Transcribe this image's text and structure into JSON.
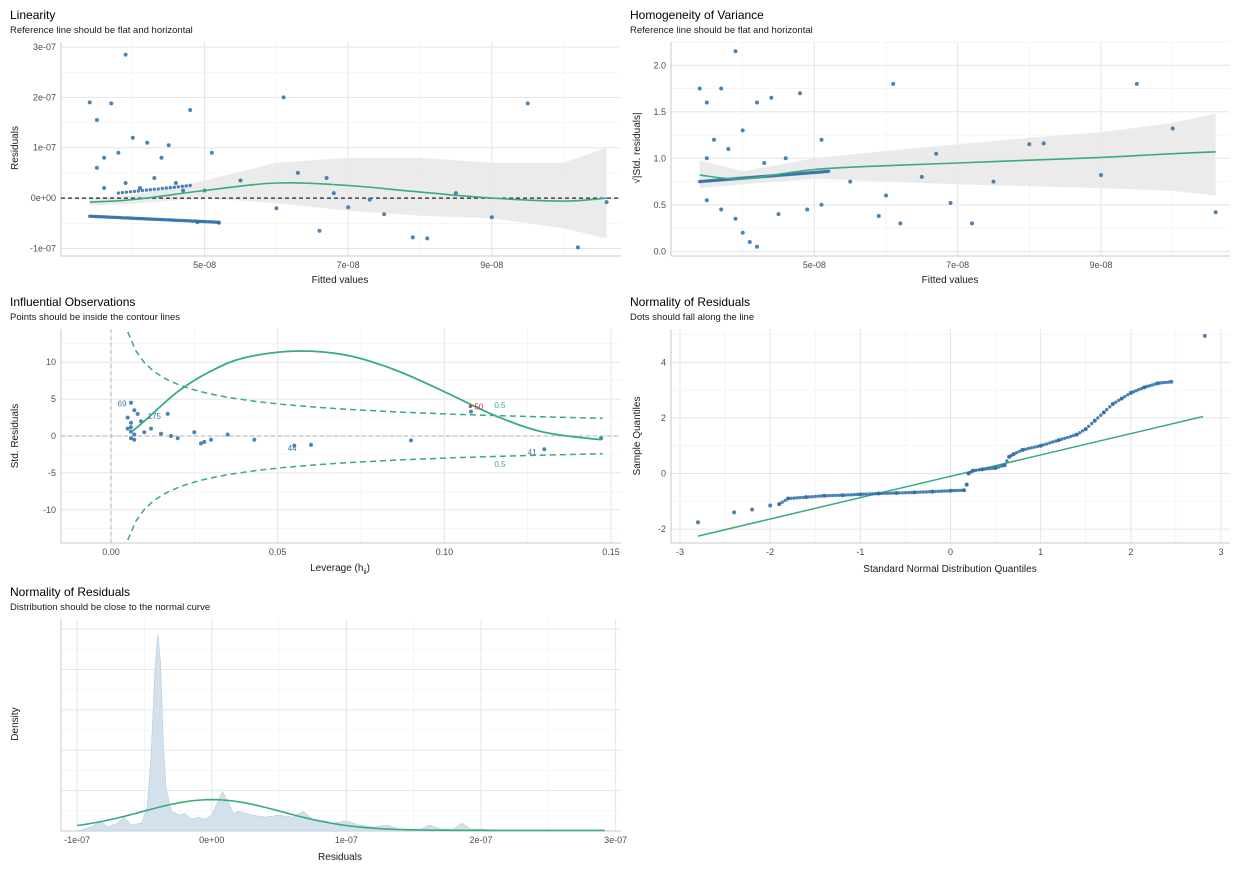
{
  "colors": {
    "points": "#2f6fa6",
    "fit_line": "#3aaa80",
    "band": "#e8e8e8",
    "reference": "#222222",
    "density_fill": "#d2e1ec",
    "highlight": "#cc3333"
  },
  "chart_data": [
    {
      "id": "linearity",
      "type": "scatter",
      "title": "Linearity",
      "subtitle": "Reference line should be flat and horizontal",
      "xlabel": "Fitted values",
      "ylabel": "Residuals",
      "xlim": [
        3e-08,
        1.08e-07
      ],
      "ylim": [
        -1.15e-07,
        3.1e-07
      ],
      "xticks": [
        {
          "v": 5e-08,
          "label": "5e-08"
        },
        {
          "v": 7e-08,
          "label": "7e-08"
        },
        {
          "v": 9e-08,
          "label": "9e-08"
        }
      ],
      "yticks": [
        {
          "v": -1e-07,
          "label": "-1e-07"
        },
        {
          "v": 0,
          "label": "0e+00"
        },
        {
          "v": 1e-07,
          "label": "1e-07"
        },
        {
          "v": 2e-07,
          "label": "2e-07"
        },
        {
          "v": 3e-07,
          "label": "3e-07"
        }
      ],
      "reference_line": {
        "y": 0,
        "style": "dashed"
      },
      "smooth": {
        "x": [
          3.4e-08,
          4e-08,
          5e-08,
          6e-08,
          7e-08,
          8e-08,
          9e-08,
          1e-07,
          1.06e-07
        ],
        "y": [
          -8e-09,
          -3e-09,
          1.5e-08,
          3e-08,
          2.5e-08,
          1.2e-08,
          0,
          -6e-09,
          0
        ]
      },
      "band": {
        "x": [
          3.4e-08,
          4e-08,
          5e-08,
          6e-08,
          7e-08,
          8e-08,
          9e-08,
          1e-07,
          1.06e-07
        ],
        "lo": [
          -1.5e-08,
          -1.1e-08,
          0,
          -1e-08,
          -2.5e-08,
          -3.5e-08,
          -4e-08,
          -6e-08,
          -8e-08
        ],
        "hi": [
          1e-09,
          6e-09,
          3.5e-08,
          7e-08,
          8e-08,
          8e-08,
          7e-08,
          7e-08,
          1e-07
        ]
      },
      "points": [
        [
          3.4e-08,
          1.9e-07
        ],
        [
          3.5e-08,
          1.55e-07
        ],
        [
          3.7e-08,
          1.88e-07
        ],
        [
          3.9e-08,
          2.85e-07
        ],
        [
          3.5e-08,
          6e-08
        ],
        [
          3.6e-08,
          8e-08
        ],
        [
          3.8e-08,
          9e-08
        ],
        [
          4e-08,
          1.2e-07
        ],
        [
          4.2e-08,
          1.1e-07
        ],
        [
          4.4e-08,
          8e-08
        ],
        [
          4.5e-08,
          1.05e-07
        ],
        [
          4.8e-08,
          1.75e-07
        ],
        [
          5.1e-08,
          9e-08
        ],
        [
          4.1e-08,
          2e-08
        ],
        [
          4.3e-08,
          4e-08
        ],
        [
          3.6e-08,
          2e-08
        ],
        [
          3.9e-08,
          3e-08
        ],
        [
          4.6e-08,
          3e-08
        ],
        [
          5e-08,
          1.5e-08
        ],
        [
          5.5e-08,
          3.5e-08
        ],
        [
          6.1e-08,
          2e-07
        ],
        [
          6e-08,
          -2e-08
        ],
        [
          6.3e-08,
          5e-08
        ],
        [
          6.6e-08,
          -6.5e-08
        ],
        [
          6.8e-08,
          1e-08
        ],
        [
          6.7e-08,
          4e-08
        ],
        [
          7e-08,
          -1.8e-08
        ],
        [
          7.3e-08,
          -3e-09
        ],
        [
          7.5e-08,
          -3.2e-08
        ],
        [
          7.9e-08,
          -7.8e-08
        ],
        [
          8.1e-08,
          -8e-08
        ],
        [
          8.5e-08,
          1e-08
        ],
        [
          9e-08,
          -3.8e-08
        ],
        [
          9.5e-08,
          1.88e-07
        ],
        [
          1.02e-07,
          -9.8e-08
        ],
        [
          1.06e-07,
          -8e-09
        ],
        [
          4.7e-08,
          1.5e-08
        ],
        [
          4.9e-08,
          -4.8e-08
        ],
        [
          5.2e-08,
          -4.9e-08
        ]
      ]
    },
    {
      "id": "homogeneity",
      "type": "scatter",
      "title": "Homogeneity of Variance",
      "subtitle": "Reference line should be flat and horizontal",
      "xlabel": "Fitted values",
      "ylabel": "√|Std. residuals|",
      "xlim": [
        3e-08,
        1.08e-07
      ],
      "ylim": [
        -0.05,
        2.25
      ],
      "xticks": [
        {
          "v": 5e-08,
          "label": "5e-08"
        },
        {
          "v": 7e-08,
          "label": "7e-08"
        },
        {
          "v": 9e-08,
          "label": "9e-08"
        }
      ],
      "yticks": [
        {
          "v": 0,
          "label": "0.0"
        },
        {
          "v": 0.5,
          "label": "0.5"
        },
        {
          "v": 1.0,
          "label": "1.0"
        },
        {
          "v": 1.5,
          "label": "1.5"
        },
        {
          "v": 2.0,
          "label": "2.0"
        }
      ],
      "smooth": {
        "x": [
          3.4e-08,
          4e-08,
          5e-08,
          6e-08,
          7e-08,
          8e-08,
          9e-08,
          1e-07,
          1.06e-07
        ],
        "y": [
          0.82,
          0.78,
          0.88,
          0.92,
          0.95,
          0.98,
          1.01,
          1.05,
          1.07
        ]
      },
      "band": {
        "x": [
          3.4e-08,
          4e-08,
          5e-08,
          6e-08,
          7e-08,
          8e-08,
          9e-08,
          1e-07,
          1.06e-07
        ],
        "lo": [
          0.68,
          0.72,
          0.78,
          0.75,
          0.72,
          0.7,
          0.68,
          0.65,
          0.6
        ],
        "hi": [
          0.98,
          0.86,
          1.0,
          1.08,
          1.15,
          1.22,
          1.28,
          1.38,
          1.48
        ]
      },
      "points": [
        [
          3.4e-08,
          1.75
        ],
        [
          3.5e-08,
          1.6
        ],
        [
          3.7e-08,
          1.75
        ],
        [
          3.9e-08,
          2.15
        ],
        [
          3.5e-08,
          1.0
        ],
        [
          3.6e-08,
          1.2
        ],
        [
          3.8e-08,
          1.1
        ],
        [
          4e-08,
          1.3
        ],
        [
          4.2e-08,
          1.6
        ],
        [
          4.4e-08,
          1.65
        ],
        [
          4.8e-08,
          1.7
        ],
        [
          5.1e-08,
          1.2
        ],
        [
          3.5e-08,
          0.55
        ],
        [
          3.7e-08,
          0.45
        ],
        [
          3.9e-08,
          0.35
        ],
        [
          4e-08,
          0.2
        ],
        [
          4.1e-08,
          0.1
        ],
        [
          4.2e-08,
          0.05
        ],
        [
          4.5e-08,
          0.4
        ],
        [
          4.9e-08,
          0.45
        ],
        [
          5.1e-08,
          0.5
        ],
        [
          5.5e-08,
          0.75
        ],
        [
          5.9e-08,
          0.38
        ],
        [
          6e-08,
          0.6
        ],
        [
          6.1e-08,
          1.8
        ],
        [
          6.2e-08,
          0.3
        ],
        [
          6.5e-08,
          0.8
        ],
        [
          6.7e-08,
          1.05
        ],
        [
          6.9e-08,
          0.52
        ],
        [
          7.2e-08,
          0.3
        ],
        [
          7.5e-08,
          0.75
        ],
        [
          8e-08,
          1.15
        ],
        [
          8.2e-08,
          1.16
        ],
        [
          9e-08,
          0.82
        ],
        [
          9.5e-08,
          1.8
        ],
        [
          1e-07,
          1.32
        ],
        [
          1.06e-07,
          0.42
        ],
        [
          4.3e-08,
          0.95
        ],
        [
          4.6e-08,
          1.0
        ]
      ]
    },
    {
      "id": "influential",
      "type": "scatter",
      "title": "Influential Observations",
      "subtitle": "Points should be inside the contour lines",
      "xlabel": "Leverage (h",
      "xlabel_sub": "ii",
      "xlabel_end": ")",
      "ylabel": "Std. Residuals",
      "xlim": [
        -0.015,
        0.153
      ],
      "ylim": [
        -14.5,
        14.5
      ],
      "xticks": [
        {
          "v": 0.0,
          "label": "0.00"
        },
        {
          "v": 0.05,
          "label": "0.05"
        },
        {
          "v": 0.1,
          "label": "0.10"
        },
        {
          "v": 0.15,
          "label": "0.15"
        }
      ],
      "yticks": [
        {
          "v": -10,
          "label": "-10"
        },
        {
          "v": -5,
          "label": "-5"
        },
        {
          "v": 0,
          "label": "0"
        },
        {
          "v": 5,
          "label": "5"
        },
        {
          "v": 10,
          "label": "10"
        }
      ],
      "contour_label": "0.5",
      "labels": [
        {
          "x": 0.002,
          "y": 4.0,
          "text": "69",
          "kind": "blue"
        },
        {
          "x": 0.011,
          "y": 2.3,
          "text": "175",
          "kind": "blue"
        },
        {
          "x": 0.053,
          "y": -2.0,
          "text": "44",
          "kind": "blue"
        },
        {
          "x": 0.109,
          "y": 3.6,
          "text": "50",
          "kind": "red"
        },
        {
          "x": 0.125,
          "y": -2.6,
          "text": "41",
          "kind": "blue"
        }
      ],
      "smooth": {
        "x": [
          0.006,
          0.01,
          0.02,
          0.03,
          0.04,
          0.055,
          0.07,
          0.085,
          0.1,
          0.115,
          0.13,
          0.147
        ],
        "y": [
          0.5,
          2.0,
          6.0,
          8.8,
          10.6,
          11.5,
          11.0,
          9.0,
          6.0,
          2.8,
          0.5,
          -0.5
        ]
      },
      "points": [
        [
          0.005,
          2.5
        ],
        [
          0.006,
          1.8
        ],
        [
          0.006,
          1.2
        ],
        [
          0.006,
          0.6
        ],
        [
          0.007,
          0.2
        ],
        [
          0.006,
          -0.3
        ],
        [
          0.007,
          -0.5
        ],
        [
          0.005,
          1.0
        ],
        [
          0.006,
          4.5
        ],
        [
          0.007,
          3.5
        ],
        [
          0.008,
          3.0
        ],
        [
          0.009,
          2.0
        ],
        [
          0.01,
          0.5
        ],
        [
          0.012,
          1.0
        ],
        [
          0.015,
          0.3
        ],
        [
          0.017,
          3.0
        ],
        [
          0.018,
          0.0
        ],
        [
          0.02,
          -0.3
        ],
        [
          0.025,
          0.5
        ],
        [
          0.027,
          -1.0
        ],
        [
          0.028,
          -0.8
        ],
        [
          0.03,
          -0.5
        ],
        [
          0.035,
          0.2
        ],
        [
          0.043,
          -0.5
        ],
        [
          0.055,
          -1.3
        ],
        [
          0.06,
          -1.2
        ],
        [
          0.09,
          -0.6
        ],
        [
          0.108,
          3.3
        ],
        [
          0.13,
          -1.8
        ],
        [
          0.147,
          -0.3
        ]
      ]
    },
    {
      "id": "qq",
      "type": "scatter",
      "title": "Normality of Residuals",
      "subtitle": "Dots should fall along the line",
      "xlabel": "Standard Normal Distribution Quantiles",
      "ylabel": "Sample Quantiles",
      "xlim": [
        -3.1,
        3.1
      ],
      "ylim": [
        -2.5,
        5.2
      ],
      "xticks": [
        {
          "v": -3,
          "label": "-3"
        },
        {
          "v": -2,
          "label": "-2"
        },
        {
          "v": -1,
          "label": "-1"
        },
        {
          "v": 0,
          "label": "0"
        },
        {
          "v": 1,
          "label": "1"
        },
        {
          "v": 2,
          "label": "2"
        },
        {
          "v": 3,
          "label": "3"
        }
      ],
      "yticks": [
        {
          "v": -2,
          "label": "-2"
        },
        {
          "v": 0,
          "label": "0"
        },
        {
          "v": 2,
          "label": "2"
        },
        {
          "v": 4,
          "label": "4"
        }
      ],
      "reference_line": {
        "x": [
          -2.8,
          2.8
        ],
        "y": [
          -2.25,
          2.05
        ]
      },
      "points": [
        [
          -2.8,
          -1.75
        ],
        [
          -2.4,
          -1.4
        ],
        [
          -2.2,
          -1.3
        ],
        [
          -2.0,
          -1.15
        ],
        [
          -1.9,
          -1.1
        ],
        [
          -1.8,
          -0.9
        ],
        [
          -1.6,
          -0.85
        ],
        [
          -1.4,
          -0.8
        ],
        [
          -1.2,
          -0.78
        ],
        [
          -1.0,
          -0.75
        ],
        [
          -0.8,
          -0.72
        ],
        [
          -0.6,
          -0.7
        ],
        [
          -0.4,
          -0.68
        ],
        [
          -0.2,
          -0.65
        ],
        [
          0.0,
          -0.62
        ],
        [
          0.15,
          -0.6
        ],
        [
          0.18,
          -0.4
        ],
        [
          0.2,
          0.0
        ],
        [
          0.25,
          0.1
        ],
        [
          0.35,
          0.15
        ],
        [
          0.5,
          0.2
        ],
        [
          0.6,
          0.3
        ],
        [
          0.65,
          0.6
        ],
        [
          0.7,
          0.7
        ],
        [
          0.8,
          0.85
        ],
        [
          1.0,
          1.0
        ],
        [
          1.2,
          1.2
        ],
        [
          1.4,
          1.4
        ],
        [
          1.5,
          1.6
        ],
        [
          1.6,
          1.9
        ],
        [
          1.7,
          2.2
        ],
        [
          1.8,
          2.5
        ],
        [
          1.9,
          2.7
        ],
        [
          2.0,
          2.9
        ],
        [
          2.15,
          3.1
        ],
        [
          2.3,
          3.25
        ],
        [
          2.45,
          3.3
        ],
        [
          2.82,
          4.95
        ]
      ]
    },
    {
      "id": "density",
      "type": "area",
      "title": "Normality of Residuals",
      "subtitle": "Distribution should be close to the normal curve",
      "xlabel": "Residuals",
      "ylabel": "Density",
      "xlim": [
        -1.12e-07,
        3.04e-07
      ],
      "ylim": [
        0,
        1.0
      ],
      "xticks": [
        {
          "v": -1e-07,
          "label": "-1e-07"
        },
        {
          "v": 0,
          "label": "0e+00"
        },
        {
          "v": 1e-07,
          "label": "1e-07"
        },
        {
          "v": 2e-07,
          "label": "2e-07"
        },
        {
          "v": 3e-07,
          "label": "3e-07"
        }
      ],
      "density": {
        "x": [
          -1e-07,
          -9e-08,
          -8.2e-08,
          -7.8e-08,
          -7e-08,
          -6.5e-08,
          -6e-08,
          -5.2e-08,
          -4.8e-08,
          -4.5e-08,
          -4.2e-08,
          -4e-08,
          -3.8e-08,
          -3.6e-08,
          -3.4e-08,
          -3.2e-08,
          -3e-08,
          -2.7e-08,
          -2.3e-08,
          -2e-08,
          -1.5e-08,
          -1e-08,
          -5e-09,
          0,
          5e-09,
          8e-09,
          1.2e-08,
          1.6e-08,
          2e-08,
          3e-08,
          4e-08,
          5e-08,
          6e-08,
          6.8e-08,
          7.5e-08,
          8.5e-08,
          9e-08,
          1e-07,
          1.1e-07,
          1.2e-07,
          1.3e-07,
          1.4e-07,
          1.55e-07,
          1.62e-07,
          1.7e-07,
          1.8e-07,
          1.86e-07,
          1.92e-07,
          2e-07,
          2.2e-07,
          2.5e-07,
          2.8e-07,
          2.9e-07
        ],
        "y": [
          0.0,
          0.02,
          0.05,
          0.02,
          0.04,
          0.07,
          0.03,
          0.04,
          0.12,
          0.4,
          0.85,
          1.0,
          0.85,
          0.45,
          0.22,
          0.16,
          0.1,
          0.09,
          0.08,
          0.09,
          0.06,
          0.07,
          0.06,
          0.08,
          0.16,
          0.2,
          0.15,
          0.09,
          0.1,
          0.08,
          0.07,
          0.08,
          0.07,
          0.1,
          0.06,
          0.05,
          0.04,
          0.05,
          0.03,
          0.02,
          0.03,
          0.01,
          0.01,
          0.03,
          0.01,
          0.01,
          0.04,
          0.01,
          0.01,
          0.0,
          0.0,
          0.0,
          0.0
        ]
      },
      "normal_curve": {
        "mean": 0,
        "sd": 5.2e-08,
        "peak": 0.145
      }
    }
  ]
}
